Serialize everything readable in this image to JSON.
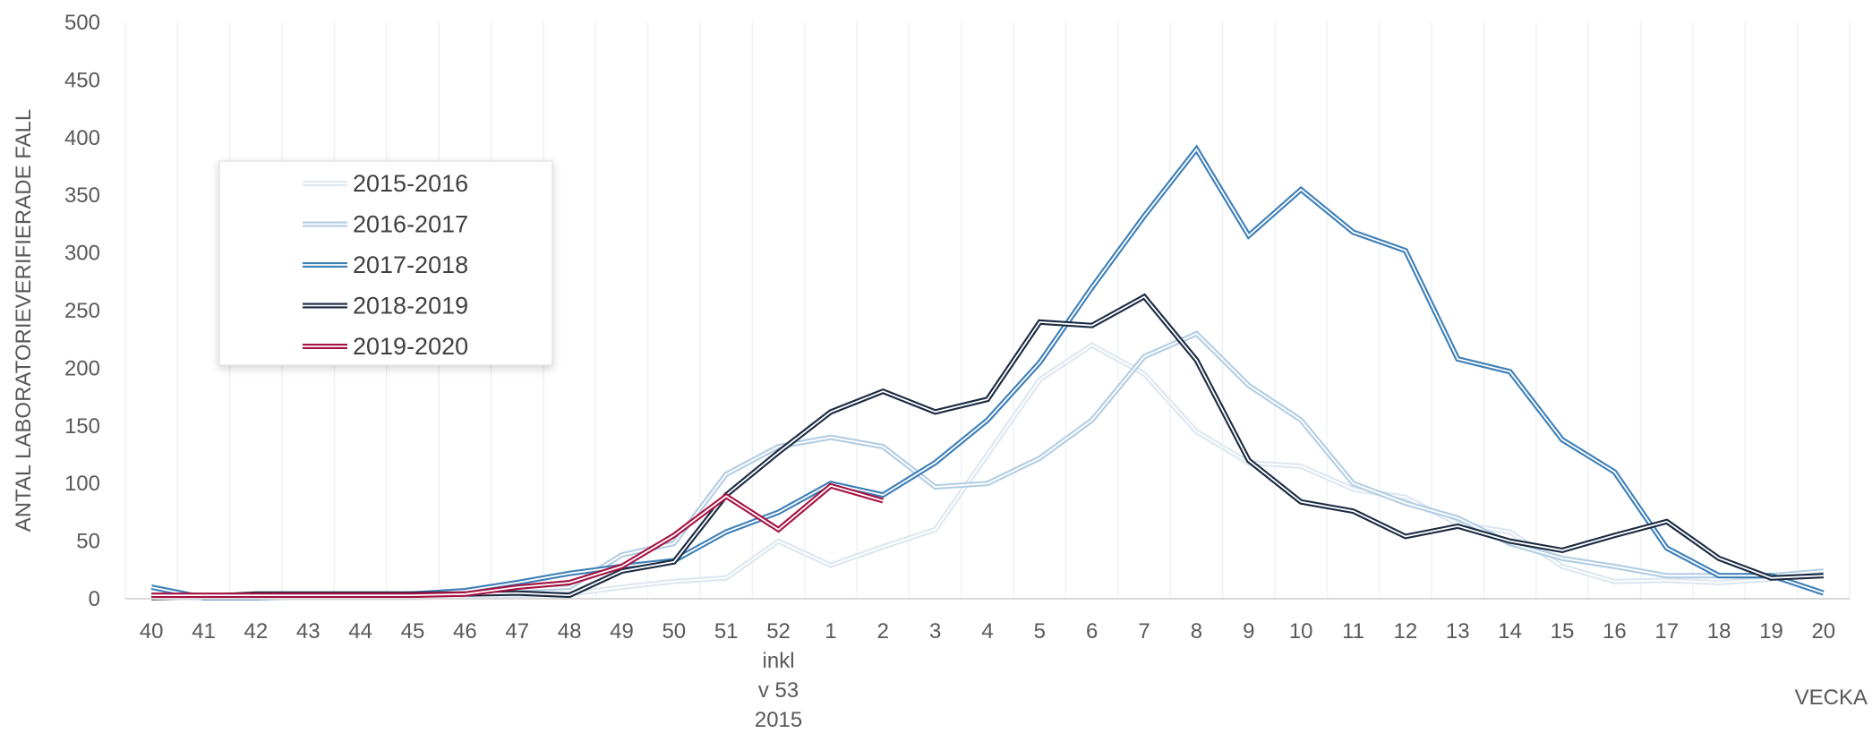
{
  "chart_data": {
    "type": "line",
    "title": "",
    "ylabel": "ANTAL LABORATORIEVERIFIERADE FALL",
    "xlabel": "VECKA",
    "ylim": [
      0,
      500
    ],
    "y_ticks": [
      "0",
      "50",
      "100",
      "150",
      "200",
      "250",
      "300",
      "350",
      "400",
      "450",
      "500"
    ],
    "categories": [
      "40",
      "41",
      "42",
      "43",
      "44",
      "45",
      "46",
      "47",
      "48",
      "49",
      "50",
      "51",
      "52",
      "1",
      "2",
      "3",
      "4",
      "5",
      "6",
      "7",
      "8",
      "9",
      "10",
      "11",
      "12",
      "13",
      "14",
      "15",
      "16",
      "17",
      "18",
      "19",
      "20"
    ],
    "category_sublabel": [
      "inkl",
      "v 53",
      "2015"
    ],
    "grid": "vertical",
    "legend_position": "left",
    "series": [
      {
        "name": "2015-2016",
        "color": "#dde7f1",
        "values": [
          1,
          1,
          1,
          1,
          1,
          1,
          2,
          3,
          4,
          10,
          15,
          18,
          50,
          29,
          45,
          60,
          125,
          190,
          220,
          195,
          145,
          118,
          115,
          95,
          88,
          65,
          58,
          28,
          15,
          16,
          14,
          17,
          null
        ]
      },
      {
        "name": "2016-2017",
        "color": "#b3cde3",
        "values": [
          3,
          1,
          2,
          2,
          2,
          3,
          5,
          8,
          10,
          38,
          48,
          108,
          132,
          140,
          132,
          97,
          100,
          122,
          155,
          210,
          230,
          185,
          155,
          100,
          83,
          70,
          48,
          35,
          28,
          20,
          20,
          20,
          24
        ]
      },
      {
        "name": "2017-2018",
        "color": "#3d7fb7",
        "values": [
          10,
          1,
          1,
          2,
          3,
          4,
          7,
          14,
          22,
          28,
          33,
          58,
          75,
          100,
          90,
          118,
          155,
          205,
          270,
          332,
          390,
          315,
          355,
          318,
          302,
          208,
          197,
          138,
          110,
          44,
          20,
          20,
          5
        ]
      },
      {
        "name": "2018-2019",
        "color": "#1b2a41",
        "values": [
          1,
          2,
          4,
          4,
          4,
          4,
          4,
          5,
          3,
          24,
          32,
          90,
          127,
          162,
          180,
          162,
          173,
          240,
          237,
          262,
          207,
          120,
          84,
          76,
          54,
          63,
          50,
          42,
          55,
          67,
          35,
          18,
          20
        ]
      },
      {
        "name": "2019-2020",
        "color": "#a51140",
        "values": [
          3,
          3,
          3,
          3,
          3,
          3,
          4,
          10,
          14,
          28,
          55,
          89,
          60,
          98,
          85,
          null,
          null,
          null,
          null,
          null,
          null,
          null,
          null,
          null,
          null,
          null,
          null,
          null,
          null,
          null,
          null,
          null,
          null
        ]
      }
    ]
  }
}
